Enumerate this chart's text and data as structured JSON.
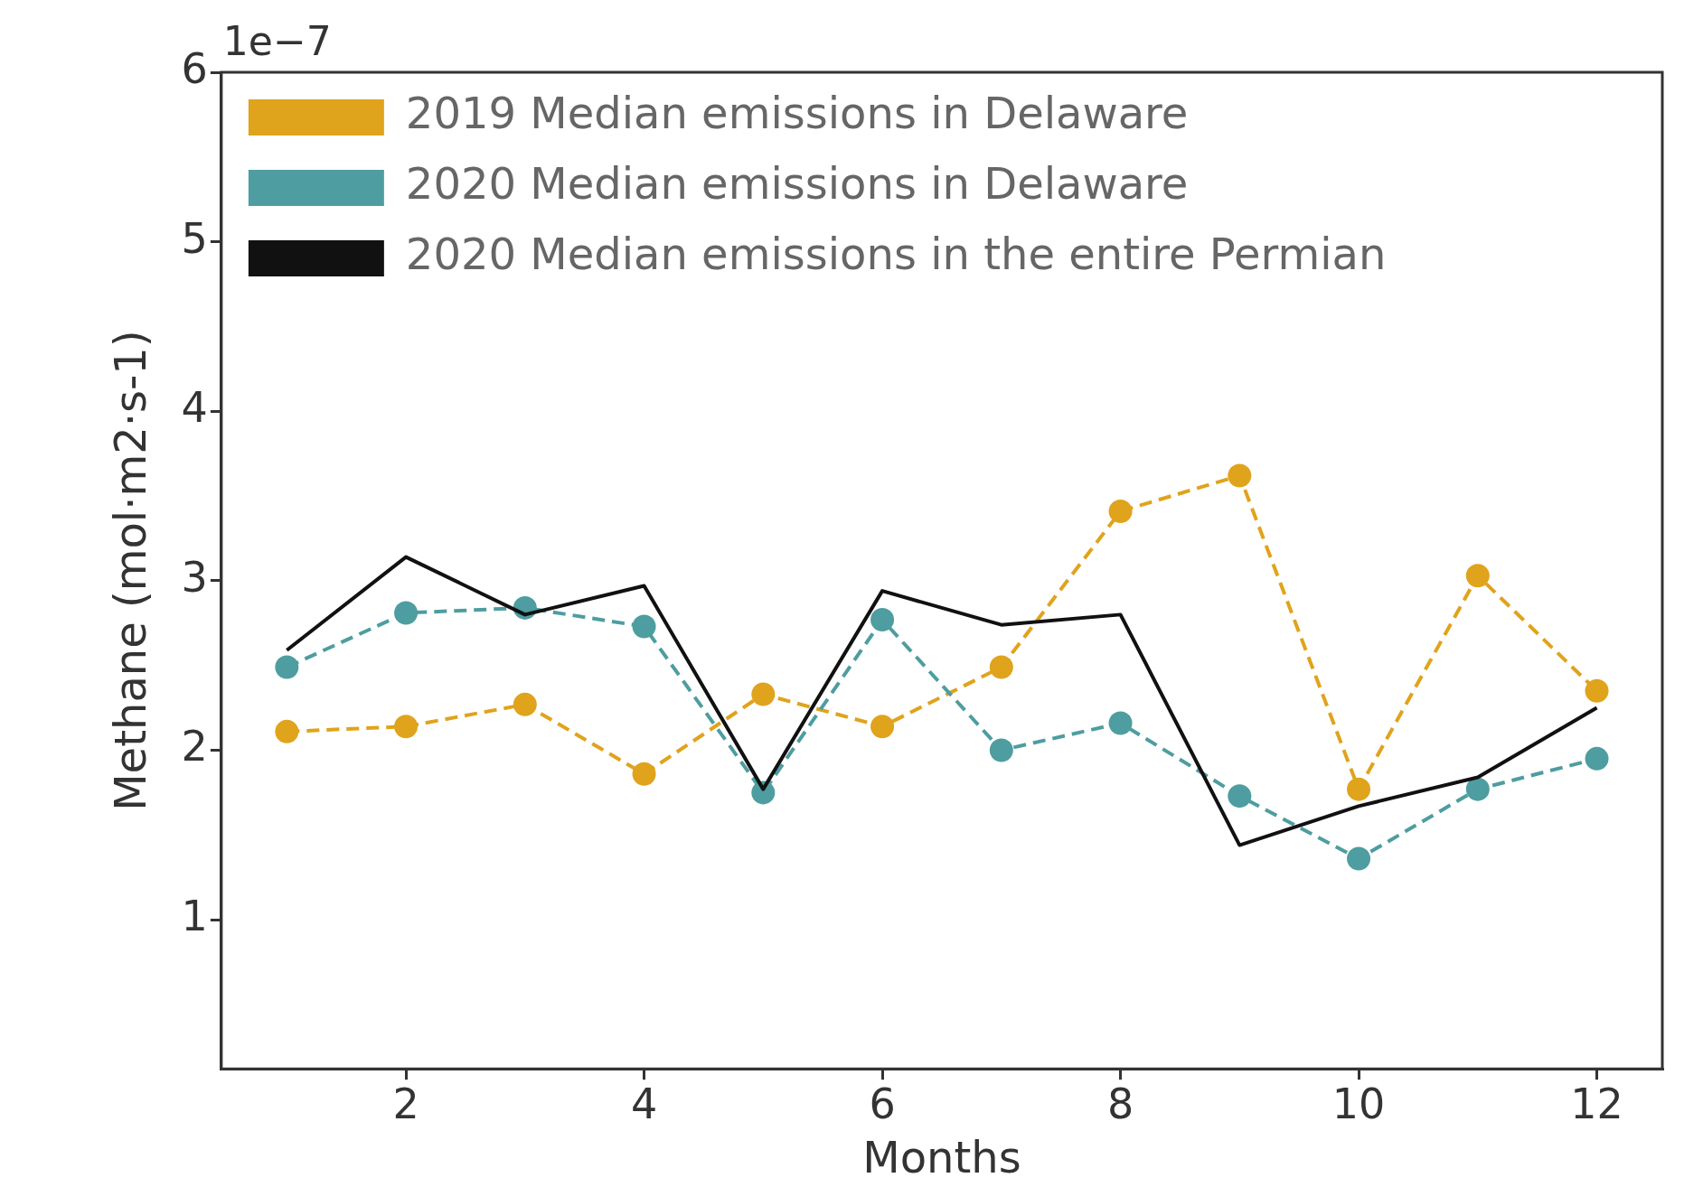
{
  "chart_data": {
    "type": "line",
    "xlabel": "Months",
    "ylabel": "Methane (mol·m2·s-1)",
    "annotations": [
      "1e−7"
    ],
    "x": [
      1,
      2,
      3,
      4,
      5,
      6,
      7,
      8,
      9,
      10,
      11,
      12
    ],
    "xlim": [
      0.45,
      12.55
    ],
    "xticks": [
      2,
      4,
      6,
      8,
      10,
      12
    ],
    "ylim": [
      0.12,
      6
    ],
    "yticks": [
      1,
      2,
      3,
      4,
      5,
      6
    ],
    "grid": false,
    "legend": "top left",
    "series": [
      {
        "name": "2019 Median emissions in Delaware",
        "color": "#e0a31c",
        "line_style": "dashed",
        "marker": "circle",
        "values": [
          2.11,
          2.14,
          2.27,
          1.86,
          2.33,
          2.14,
          2.49,
          3.41,
          3.62,
          1.77,
          3.03,
          2.35
        ]
      },
      {
        "name": "2020 Median emissions in Delaware",
        "color": "#4e9da0",
        "line_style": "dashed",
        "marker": "circle",
        "values": [
          2.49,
          2.81,
          2.84,
          2.73,
          1.75,
          2.77,
          2.0,
          2.16,
          1.73,
          1.36,
          1.77,
          1.95
        ]
      },
      {
        "name": "2020 Median emissions in the entire Permian",
        "color": "#111111",
        "line_style": "solid",
        "marker": "none",
        "values": [
          2.59,
          3.14,
          2.8,
          2.97,
          1.77,
          2.94,
          2.74,
          2.8,
          1.44,
          1.67,
          1.84,
          2.25
        ]
      }
    ]
  }
}
